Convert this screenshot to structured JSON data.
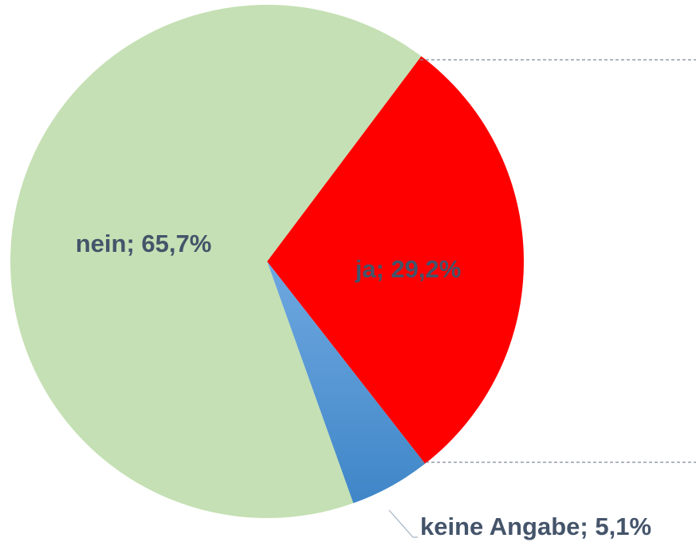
{
  "chart_data": {
    "type": "pie",
    "values": [
      29.2,
      5.1,
      65.7
    ],
    "value_labels": [
      "ja; 29,2%",
      "keine Angabe; 5,1%",
      "nein; 65,7%"
    ],
    "colors": [
      "#ff0000",
      "#5b9bd5",
      "#c5e0b4"
    ]
  }
}
